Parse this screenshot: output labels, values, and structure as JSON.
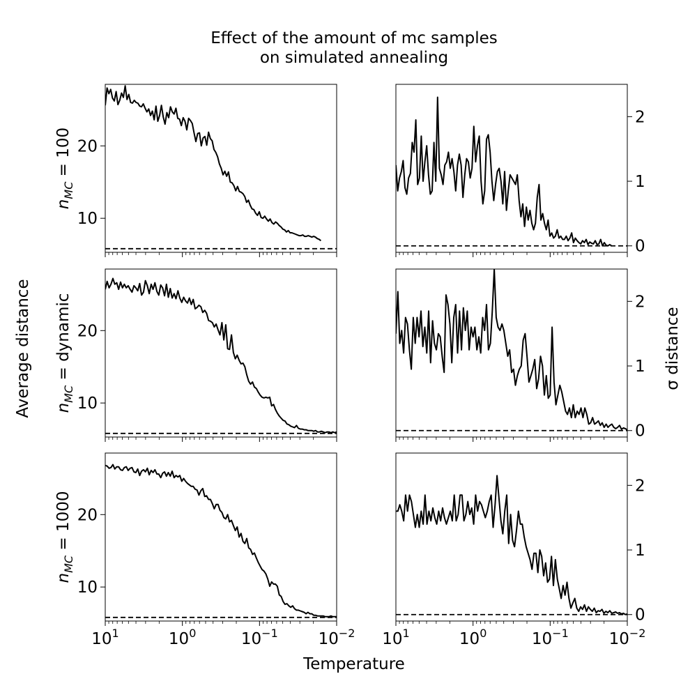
{
  "figure": {
    "title_line1": "Effect of the amount of mc samples",
    "title_line2": "on simulated annealing",
    "xlabel": "Temperature",
    "left_ylabel": "Average distance",
    "right_ylabel": "σ distance",
    "row_label_prefix": "n",
    "row_label_subscript": "MC",
    "rows": [
      {
        "value_label": " = 100"
      },
      {
        "value_label": " = dynamic"
      },
      {
        "value_label": " = 1000"
      }
    ],
    "x_tick_base": "10",
    "x_tick_exponents": [
      "1",
      "0",
      "−1",
      "−2"
    ],
    "left_y_ticks": [
      "10",
      "20"
    ],
    "right_y_ticks": [
      "0",
      "1",
      "2"
    ]
  },
  "chart_data": [
    {
      "type": "line",
      "panel": "row1-left",
      "xscale": "log-reversed",
      "xlim": [
        10,
        0.01
      ],
      "ylim": [
        5.3,
        28.5
      ],
      "ylabel": "n_MC = 100",
      "reference_line": 5.8,
      "x_start": 10,
      "x_end": 0.016,
      "y": [
        25.6,
        28.0,
        27.2,
        27.8,
        26.6,
        26.2,
        27.5,
        25.7,
        26.3,
        27.3,
        26.7,
        28.3,
        26.4,
        27.1,
        26.0,
        25.9,
        26.3,
        26.0,
        25.9,
        25.5,
        25.4,
        25.8,
        25.2,
        24.7,
        25.1,
        24.2,
        24.8,
        23.6,
        25.5,
        23.4,
        24.2,
        25.6,
        24.0,
        23.0,
        24.6,
        23.9,
        25.4,
        24.7,
        24.4,
        25.2,
        23.8,
        23.7,
        22.8,
        23.9,
        23.4,
        22.2,
        23.8,
        23.5,
        23.1,
        21.8,
        20.6,
        21.7,
        21.8,
        20.0,
        21.1,
        21.3,
        20.1,
        21.9,
        21.0,
        20.7,
        19.5,
        19.1,
        18.5,
        17.5,
        16.9,
        16.0,
        16.5,
        15.8,
        16.4,
        15.0,
        14.9,
        14.5,
        13.8,
        14.4,
        13.7,
        13.6,
        13.4,
        13.0,
        12.2,
        12.5,
        11.8,
        11.3,
        11.2,
        10.7,
        10.4,
        10.9,
        10.1,
        10.0,
        10.3,
        9.9,
        9.6,
        9.9,
        9.4,
        9.2,
        9.5,
        9.3,
        9.0,
        8.8,
        8.5,
        8.4,
        8.1,
        8.3,
        8.0,
        8.0,
        7.9,
        7.8,
        7.7,
        7.6,
        7.6,
        7.7,
        7.5,
        7.5,
        7.6,
        7.5,
        7.4,
        7.5,
        7.4,
        7.2,
        7.1,
        6.9
      ]
    },
    {
      "type": "line",
      "panel": "row1-right",
      "xscale": "log-reversed",
      "xlim": [
        10,
        0.01
      ],
      "ylim": [
        -0.1,
        2.5
      ],
      "reference_line": 0.0,
      "x_start": 10,
      "x_end": 0.016,
      "y": [
        1.25,
        0.85,
        1.05,
        1.15,
        1.32,
        0.9,
        0.8,
        1.05,
        1.12,
        1.6,
        1.45,
        1.95,
        0.95,
        1.05,
        1.7,
        1.0,
        1.3,
        1.55,
        1.1,
        0.8,
        0.85,
        1.6,
        1.0,
        2.3,
        1.2,
        1.1,
        0.95,
        1.25,
        1.3,
        1.45,
        1.2,
        1.35,
        1.15,
        0.85,
        1.25,
        1.42,
        1.25,
        0.75,
        1.1,
        1.35,
        1.3,
        1.05,
        1.2,
        1.85,
        1.3,
        1.55,
        1.7,
        1.0,
        0.65,
        0.85,
        1.65,
        1.72,
        1.45,
        1.0,
        0.7,
        0.95,
        1.15,
        1.2,
        1.0,
        0.65,
        1.15,
        0.55,
        0.85,
        1.1,
        1.05,
        1.0,
        0.95,
        1.1,
        0.7,
        0.45,
        0.65,
        0.3,
        0.6,
        0.4,
        0.55,
        0.35,
        0.25,
        0.35,
        0.75,
        0.95,
        0.4,
        0.5,
        0.35,
        0.25,
        0.4,
        0.15,
        0.2,
        0.12,
        0.15,
        0.25,
        0.12,
        0.15,
        0.1,
        0.1,
        0.15,
        0.08,
        0.12,
        0.2,
        0.05,
        0.12,
        0.08,
        0.05,
        0.03,
        0.08,
        0.05,
        0.1,
        0.02,
        0.06,
        0.04,
        0.03,
        0.08,
        0.02,
        0.03,
        0.1,
        0.0,
        0.05,
        0.01,
        0.0,
        0.02,
        0.0
      ]
    },
    {
      "type": "line",
      "panel": "row2-left",
      "xscale": "log-reversed",
      "xlim": [
        10,
        0.01
      ],
      "ylim": [
        5.3,
        28.5
      ],
      "ylabel": "n_MC = dynamic",
      "reference_line": 5.8,
      "x_start": 10,
      "x_end": 0.01,
      "y": [
        25.7,
        26.8,
        25.9,
        26.4,
        27.2,
        26.4,
        26.6,
        25.7,
        26.7,
        25.9,
        26.4,
        25.9,
        26.2,
        25.7,
        25.3,
        26.2,
        25.9,
        25.5,
        26.5,
        24.9,
        25.3,
        26.9,
        26.2,
        25.1,
        26.4,
        25.7,
        26.6,
        25.4,
        24.9,
        26.3,
        25.9,
        24.8,
        26.4,
        24.6,
        25.8,
        24.5,
        25.1,
        24.4,
        25.5,
        24.5,
        23.9,
        24.6,
        24.1,
        23.8,
        24.5,
        23.6,
        24.3,
        23.0,
        23.2,
        23.5,
        23.3,
        22.5,
        22.8,
        22.4,
        21.4,
        21.3,
        21.1,
        20.5,
        20.9,
        20.1,
        19.4,
        21.1,
        18.7,
        20.8,
        17.5,
        17.4,
        19.4,
        17.0,
        16.1,
        16.6,
        15.9,
        15.4,
        15.5,
        15.0,
        13.9,
        13.0,
        12.6,
        12.9,
        12.2,
        12.0,
        11.5,
        11.1,
        10.8,
        10.7,
        10.8,
        10.7,
        10.8,
        9.6,
        9.8,
        9.1,
        8.6,
        8.2,
        7.9,
        7.6,
        7.5,
        7.1,
        7.0,
        6.8,
        6.7,
        6.6,
        6.9,
        6.5,
        6.4,
        6.4,
        6.3,
        6.3,
        6.2,
        6.2,
        6.2,
        6.1,
        6.2,
        6.0,
        6.0,
        6.1,
        6.0,
        5.9,
        6.0,
        6.0,
        5.9,
        6.0,
        5.9,
        6.0
      ]
    },
    {
      "type": "line",
      "panel": "row2-right",
      "xscale": "log-reversed",
      "xlim": [
        10,
        0.01
      ],
      "ylim": [
        -0.1,
        2.5
      ],
      "reference_line": 0.0,
      "x_start": 10,
      "x_end": 0.01,
      "y": [
        1.5,
        2.15,
        1.35,
        1.55,
        1.2,
        1.75,
        1.65,
        1.25,
        0.95,
        1.75,
        1.35,
        1.75,
        1.45,
        1.85,
        1.3,
        1.6,
        1.2,
        1.85,
        1.05,
        1.7,
        1.35,
        1.25,
        1.5,
        1.45,
        1.15,
        0.9,
        2.1,
        1.95,
        1.65,
        1.05,
        1.75,
        1.95,
        1.2,
        1.85,
        1.25,
        1.9,
        1.55,
        1.85,
        1.25,
        1.6,
        1.45,
        1.6,
        1.25,
        1.45,
        1.2,
        1.75,
        1.55,
        1.95,
        1.25,
        1.35,
        1.85,
        2.5,
        1.75,
        1.6,
        1.55,
        1.65,
        1.55,
        1.35,
        1.15,
        1.25,
        0.9,
        0.95,
        0.7,
        0.85,
        0.95,
        1.0,
        1.4,
        1.5,
        1.15,
        0.75,
        0.85,
        0.95,
        1.1,
        0.65,
        0.8,
        1.15,
        1.0,
        0.55,
        0.85,
        0.5,
        0.55,
        1.6,
        0.75,
        0.4,
        0.55,
        0.7,
        0.6,
        0.45,
        0.3,
        0.25,
        0.35,
        0.2,
        0.4,
        0.2,
        0.3,
        0.25,
        0.35,
        0.2,
        0.35,
        0.25,
        0.1,
        0.12,
        0.2,
        0.1,
        0.12,
        0.15,
        0.08,
        0.12,
        0.05,
        0.1,
        0.05,
        0.08,
        0.1,
        0.05,
        0.03,
        0.05,
        0.08,
        0.02,
        0.04,
        0.03,
        0.01
      ]
    },
    {
      "type": "line",
      "panel": "row3-left",
      "xscale": "log-reversed",
      "xlim": [
        10,
        0.01
      ],
      "ylim": [
        5.3,
        28.5
      ],
      "ylabel": "n_MC = 1000",
      "reference_line": 5.8,
      "x_start": 10,
      "x_end": 0.01,
      "y": [
        26.8,
        26.7,
        26.4,
        26.5,
        26.9,
        26.3,
        26.6,
        26.6,
        26.2,
        26.1,
        26.5,
        26.6,
        26.1,
        26.4,
        26.5,
        25.9,
        25.8,
        26.3,
        25.4,
        26.0,
        26.2,
        25.9,
        26.4,
        25.5,
        26.1,
        25.8,
        26.2,
        25.6,
        25.6,
        25.1,
        25.7,
        25.9,
        25.3,
        25.8,
        25.3,
        26.0,
        25.1,
        25.4,
        25.2,
        25.4,
        24.6,
        25.0,
        24.6,
        24.3,
        24.1,
        23.9,
        23.9,
        23.5,
        23.4,
        22.7,
        23.3,
        23.6,
        22.5,
        22.6,
        22.1,
        22.1,
        21.5,
        20.8,
        21.4,
        21.4,
        20.6,
        20.3,
        19.6,
        19.4,
        20.0,
        19.0,
        19.2,
        18.5,
        17.8,
        18.3,
        16.9,
        17.4,
        16.3,
        16.0,
        16.7,
        15.4,
        15.2,
        14.5,
        14.7,
        14.0,
        13.4,
        12.9,
        12.4,
        12.2,
        11.8,
        11.1,
        10.1,
        10.7,
        10.4,
        10.4,
        10.1,
        8.9,
        8.7,
        8.0,
        7.6,
        7.7,
        7.4,
        7.2,
        7.4,
        7.0,
        6.8,
        6.8,
        6.7,
        6.6,
        6.5,
        6.3,
        6.5,
        6.3,
        6.3,
        6.1,
        6.1,
        6.0,
        6.0,
        6.0,
        6.0,
        5.9,
        5.9,
        5.9,
        6.0,
        5.9,
        5.9,
        5.9
      ]
    },
    {
      "type": "line",
      "panel": "row3-right",
      "xscale": "log-reversed",
      "xlim": [
        10,
        0.01
      ],
      "ylim": [
        -0.1,
        2.5
      ],
      "reference_line": 0.0,
      "x_start": 10,
      "x_end": 0.01,
      "y": [
        1.6,
        1.6,
        1.7,
        1.6,
        1.45,
        1.85,
        1.6,
        1.85,
        1.75,
        1.55,
        1.35,
        1.55,
        1.35,
        1.6,
        1.4,
        1.85,
        1.4,
        1.6,
        1.45,
        1.65,
        1.5,
        1.4,
        1.6,
        1.45,
        1.65,
        1.5,
        1.4,
        1.5,
        1.6,
        1.45,
        1.85,
        1.45,
        1.55,
        1.85,
        1.85,
        1.45,
        1.55,
        1.75,
        1.55,
        1.65,
        1.4,
        1.85,
        1.6,
        1.75,
        1.7,
        1.6,
        1.5,
        1.6,
        1.75,
        1.85,
        1.35,
        1.7,
        2.15,
        1.8,
        1.45,
        1.25,
        1.6,
        1.85,
        1.1,
        1.55,
        1.15,
        1.05,
        1.3,
        1.6,
        1.4,
        1.4,
        1.2,
        1.05,
        0.95,
        0.85,
        0.7,
        0.95,
        0.95,
        0.65,
        1.0,
        0.9,
        0.6,
        0.8,
        0.5,
        0.55,
        0.9,
        0.45,
        0.85,
        0.55,
        0.4,
        0.25,
        0.45,
        0.3,
        0.5,
        0.25,
        0.1,
        0.18,
        0.25,
        0.1,
        0.05,
        0.12,
        0.08,
        0.15,
        0.05,
        0.12,
        0.08,
        0.05,
        0.1,
        0.03,
        0.06,
        0.05,
        0.08,
        0.02,
        0.05,
        0.03,
        0.06,
        0.02,
        0.03,
        0.04,
        0.02,
        0.03,
        0.01,
        0.02,
        0.0,
        0.01
      ]
    }
  ]
}
